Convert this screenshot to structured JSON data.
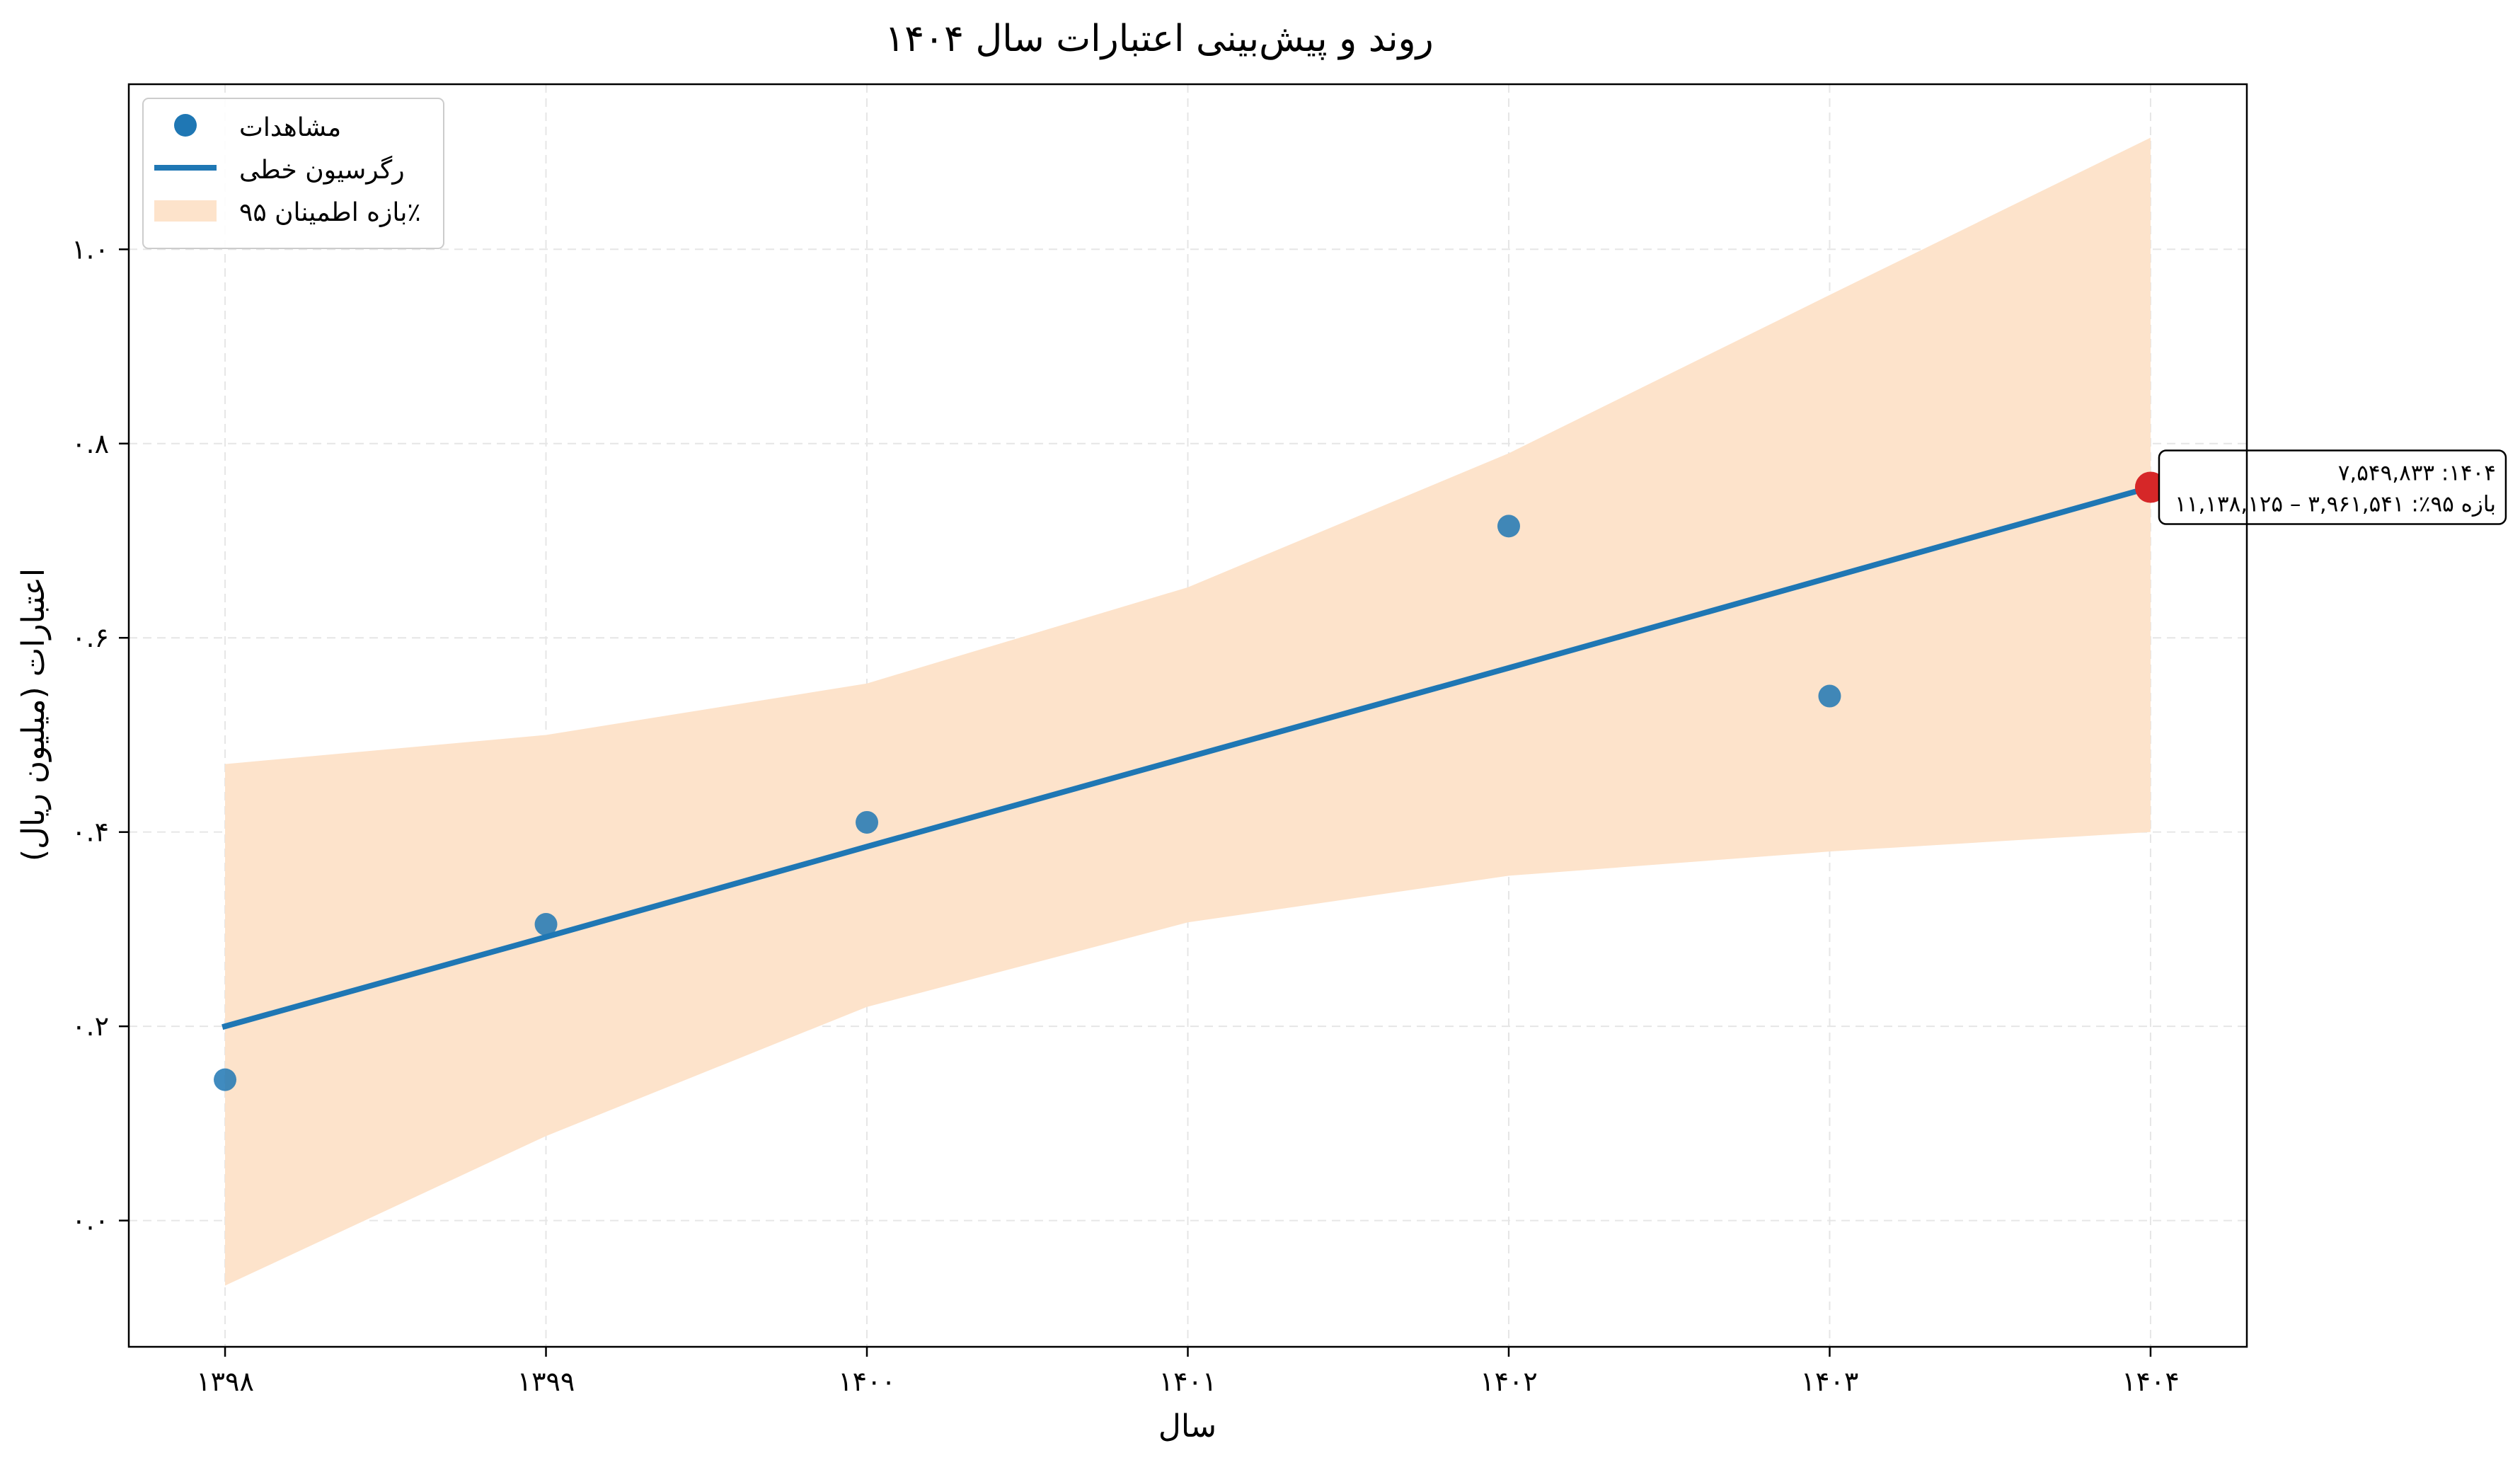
{
  "chart_data": {
    "type": "scatter",
    "title": "روند و پیش‌بینی اعتبارات سال ۱۴۰۴",
    "xlabel": "سال",
    "ylabel": "اعتبارات (میلیون ریال)",
    "x_tick_labels": [
      "۱۳۹۸",
      "۱۳۹۹",
      "۱۴۰۰",
      "۱۴۰۱",
      "۱۴۰۲",
      "۱۴۰۳",
      "۱۴۰۴"
    ],
    "y_tick_labels": [
      "۰.۰",
      "۰.۲",
      "۰.۴",
      "۰.۶",
      "۰.۸",
      "۱.۰"
    ],
    "y_ticks": [
      0.0,
      0.2,
      0.4,
      0.6,
      0.8,
      1.0
    ],
    "xlim": [
      1397.7,
      1404.3
    ],
    "ylim": [
      -0.13,
      1.17
    ],
    "grid": true,
    "legend_position": "top-left",
    "legend": {
      "observations": "مشاهدات",
      "regression": "رگرسیون خطی",
      "interval": "بازه اطمینان ۹۵٪"
    },
    "x": [
      1398,
      1399,
      1400,
      1401,
      1402,
      1403,
      1404
    ],
    "series": [
      {
        "name": "مشاهدات",
        "kind": "scatter",
        "x": [
          1398,
          1399,
          1400,
          1401,
          1402,
          1403
        ],
        "values": [
          0.145,
          0.305,
          0.41,
          null,
          0.715,
          0.54
        ]
      },
      {
        "name": "رگرسیون خطی",
        "kind": "line",
        "x": [
          1398,
          1399,
          1400,
          1401,
          1402,
          1403,
          1404
        ],
        "values": [
          0.2,
          0.292,
          0.385,
          0.477,
          0.569,
          0.662,
          0.755
        ]
      },
      {
        "name": "بازه اطمینان ۹۵٪",
        "kind": "band",
        "x": [
          1398,
          1399,
          1400,
          1401,
          1402,
          1403,
          1404
        ],
        "lower": [
          -0.067,
          0.087,
          0.22,
          0.307,
          0.355,
          0.38,
          0.4
        ],
        "upper": [
          0.47,
          0.5,
          0.553,
          0.652,
          0.79,
          0.953,
          1.115
        ]
      }
    ],
    "forecast": {
      "x": 1404,
      "y": 0.755,
      "label_line1": "۷,۵۴۹,۸۳۳ :۱۴۰۴",
      "label_line2": "بازه ۹۵٪: ۳,۹۶۱,۵۴۱ – ۱۱,۱۳۸,۱۲۵"
    },
    "colors": {
      "points": "#1f77b4",
      "line": "#1f77b4",
      "band": "#fde3cb",
      "forecast": "#d62728",
      "grid": "#e6e6e6",
      "axes": "#000000"
    }
  }
}
